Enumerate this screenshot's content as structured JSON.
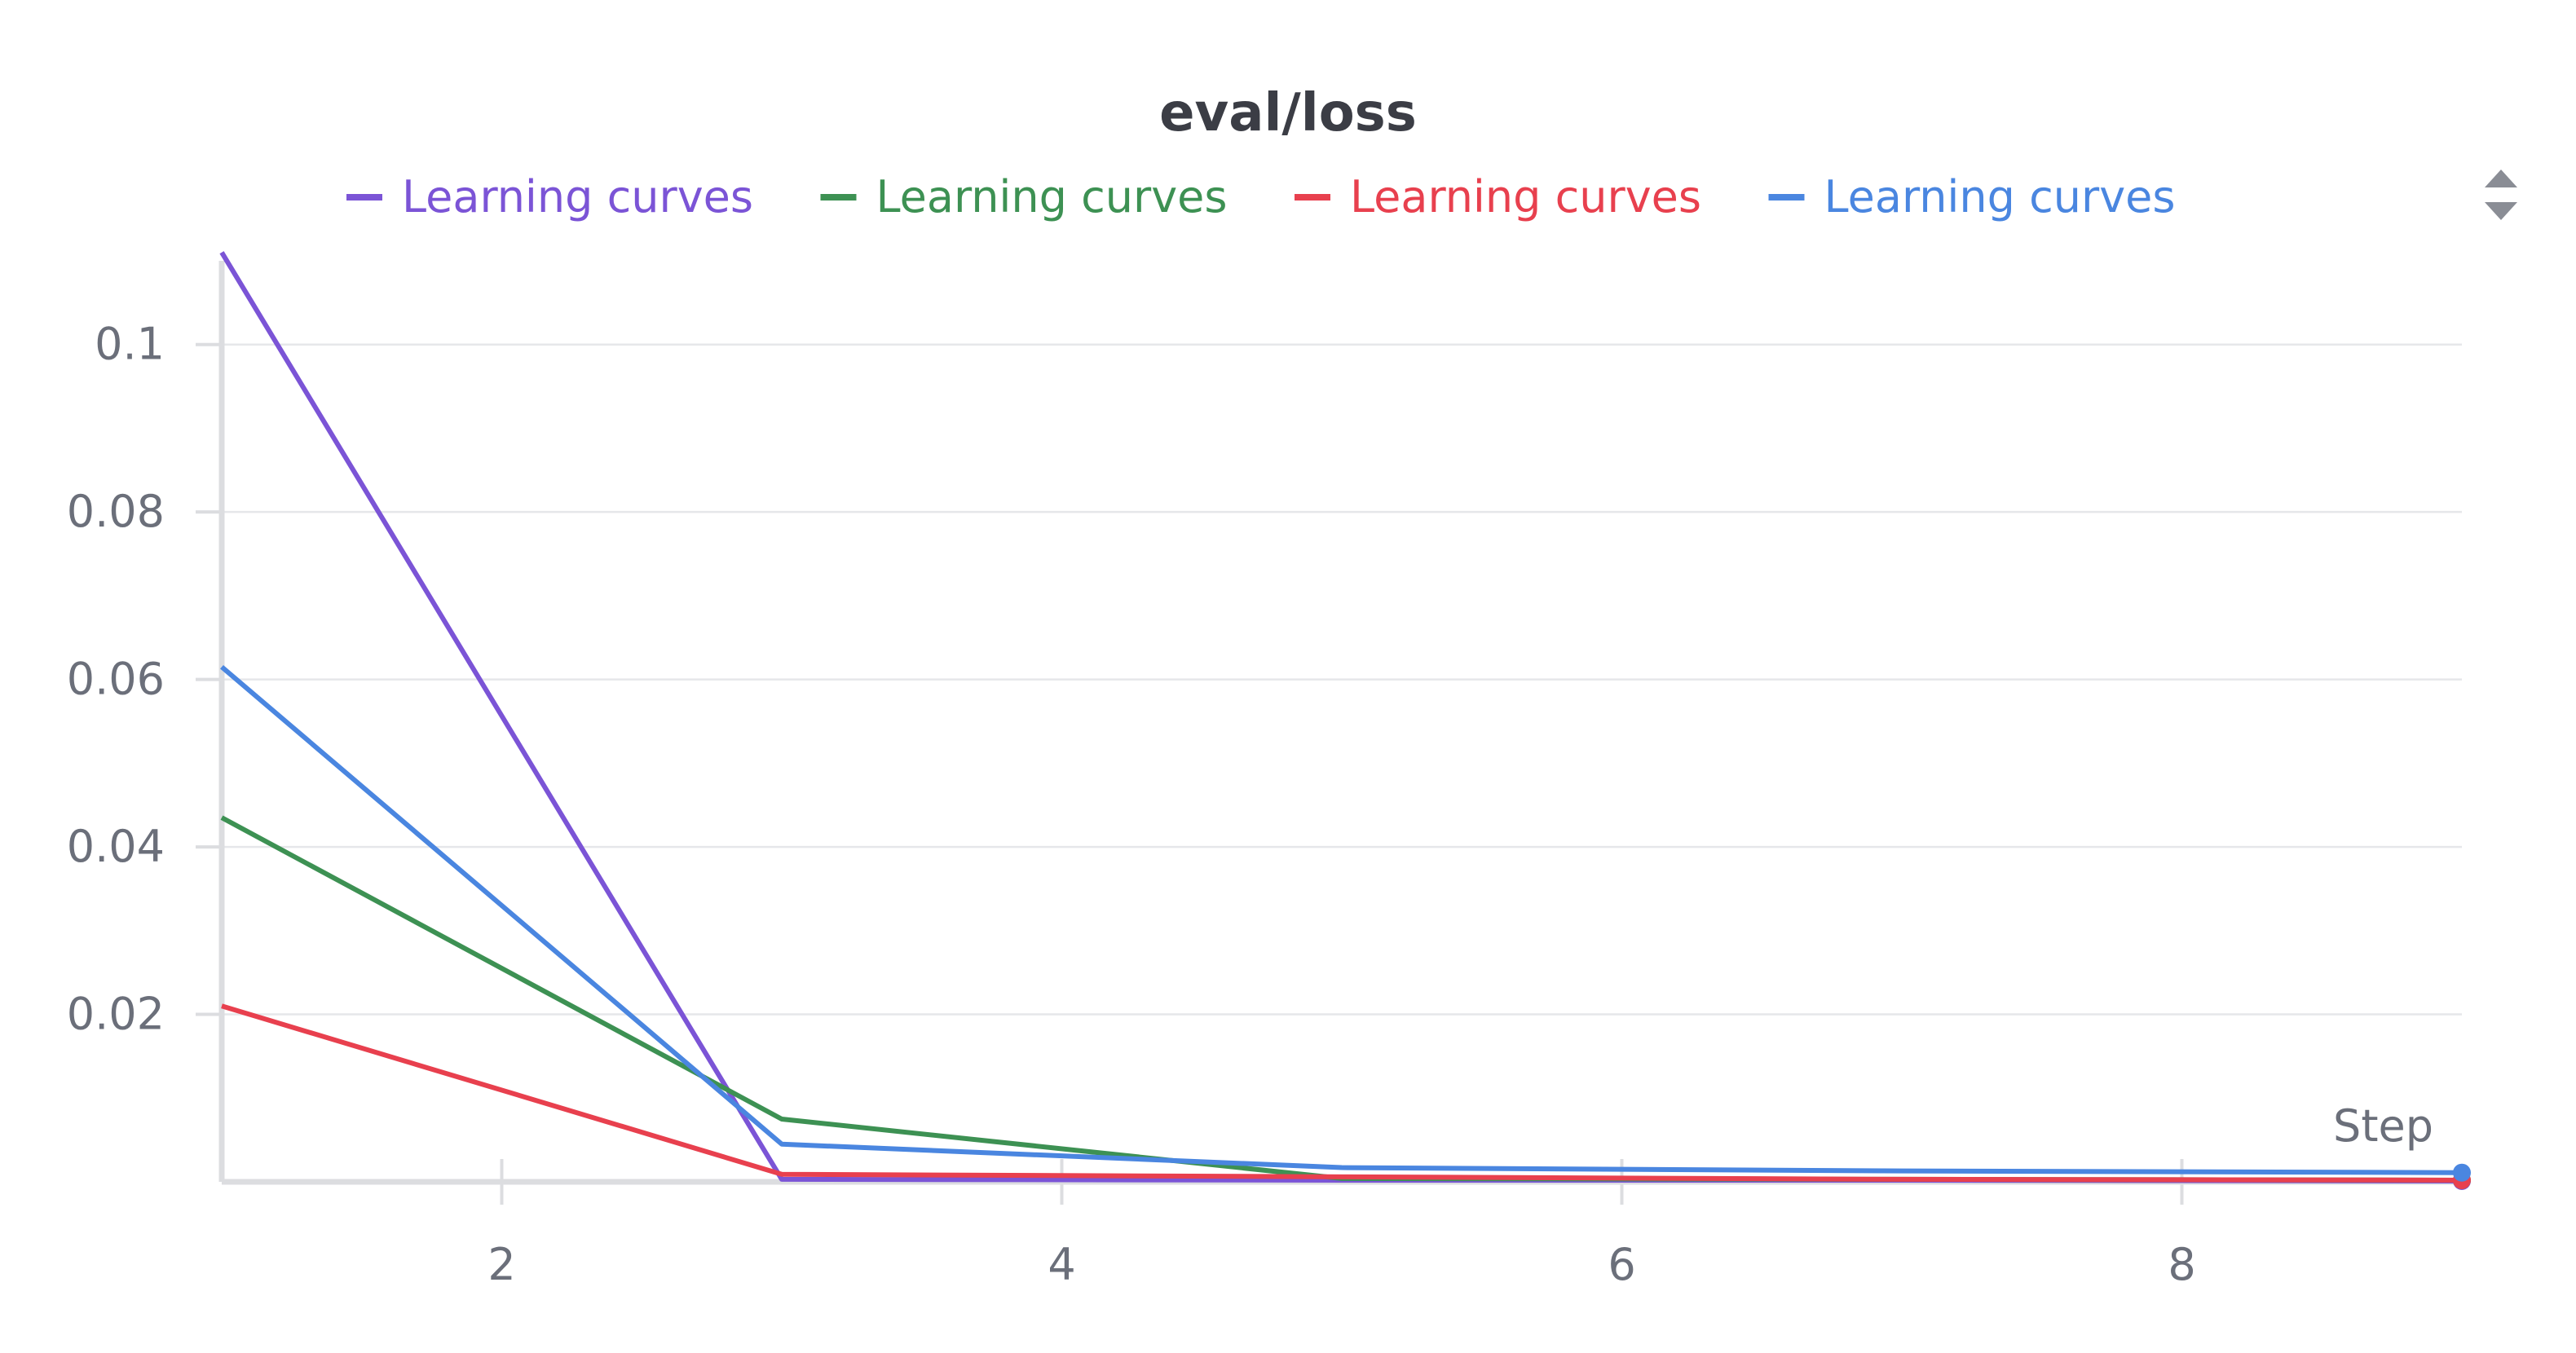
{
  "chart_data": {
    "type": "line",
    "title": "eval/loss",
    "xlabel": "Step",
    "ylabel": "",
    "xlim": [
      1,
      9
    ],
    "ylim": [
      0,
      0.11
    ],
    "xticks": [
      2,
      4,
      6,
      8
    ],
    "yticks": [
      0.02,
      0.04,
      0.06,
      0.08,
      0.1
    ],
    "legend_position": "top",
    "series": [
      {
        "name": "Learning curves",
        "color": "#7b54d6",
        "x": [
          1,
          3,
          5,
          7,
          9
        ],
        "y": [
          0.111,
          0.0003,
          0.0002,
          0.0002,
          0.0001
        ]
      },
      {
        "name": "Learning curves",
        "color": "#3d9153",
        "x": [
          1,
          3,
          5,
          7,
          9
        ],
        "y": [
          0.0435,
          0.0075,
          0.0004,
          0.0003,
          0.0002
        ]
      },
      {
        "name": "Learning curves",
        "color": "#e8404e",
        "x": [
          1,
          3,
          5,
          7,
          9
        ],
        "y": [
          0.021,
          0.0009,
          0.0006,
          0.0003,
          0.0002
        ]
      },
      {
        "name": "Learning curves",
        "color": "#4a86e0",
        "x": [
          1,
          3,
          5,
          7,
          9
        ],
        "y": [
          0.0615,
          0.0045,
          0.0017,
          0.0013,
          0.0011
        ]
      }
    ]
  }
}
